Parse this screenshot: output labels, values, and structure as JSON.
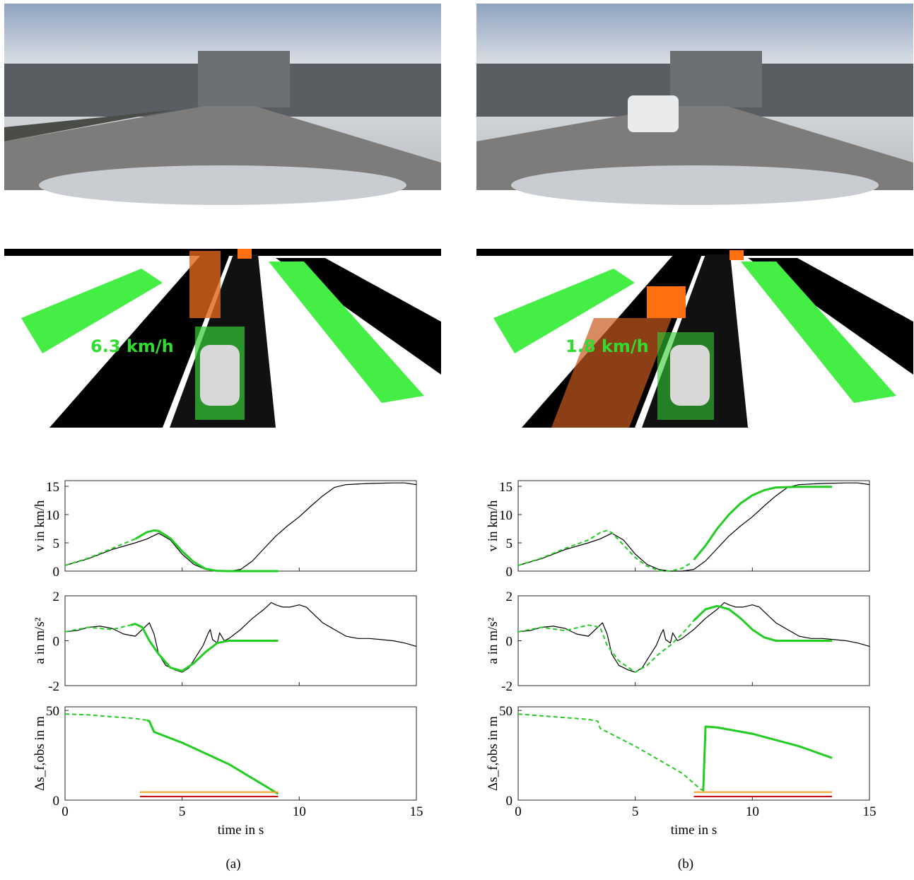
{
  "chart_data": [
    {
      "type": "line",
      "ylabel": "v in km/h",
      "xlim": [
        0,
        15
      ],
      "xticks": [
        0,
        5,
        10,
        15
      ],
      "show_xtick_labels": false,
      "ylim": [
        0,
        16
      ],
      "yticks": [
        0,
        5,
        10,
        15
      ],
      "series": [
        {
          "color": "#000000",
          "style": "solid",
          "width": 1.2,
          "x": [
            0,
            1,
            2,
            3,
            3.5,
            4,
            4.5,
            5,
            5.5,
            6,
            6.5,
            7,
            7.5,
            8,
            8.5,
            9,
            9.5,
            10,
            10.5,
            11,
            11.5,
            12,
            13,
            14,
            14.5,
            15
          ],
          "values": [
            1,
            2.2,
            3.8,
            5,
            5.7,
            6.7,
            5.5,
            3,
            1.2,
            0.3,
            0,
            0,
            0.3,
            1.8,
            4,
            6.2,
            8,
            9.6,
            11.5,
            13.3,
            14.8,
            15.3,
            15.5,
            15.6,
            15.6,
            15.3
          ]
        },
        {
          "color": "#22cc22",
          "style": "dashed",
          "width": 2,
          "x": [
            0,
            1,
            2,
            3
          ],
          "values": [
            1,
            2.3,
            4,
            5.7
          ]
        },
        {
          "color": "#22cc22",
          "style": "solid",
          "width": 3,
          "x": [
            3,
            3.5,
            3.8,
            4,
            4.5,
            5,
            5.5,
            6,
            6.5,
            7,
            8,
            9.1
          ],
          "values": [
            5.7,
            6.9,
            7.2,
            7.1,
            5.8,
            3.5,
            1.6,
            0.4,
            0.05,
            0,
            0,
            0
          ]
        }
      ]
    },
    {
      "type": "line",
      "ylabel": "a in m/s²",
      "xlim": [
        0,
        15
      ],
      "xticks": [
        0,
        5,
        10,
        15
      ],
      "show_xtick_labels": false,
      "ylim": [
        -2,
        2
      ],
      "yticks": [
        -2,
        0,
        2
      ],
      "series": [
        {
          "color": "#000000",
          "style": "solid",
          "width": 1.2,
          "x": [
            0,
            0.5,
            1,
            1.5,
            2,
            2.5,
            3,
            3.3,
            3.6,
            3.8,
            4,
            4.3,
            4.7,
            5,
            5.3,
            5.6,
            5.9,
            6.1,
            6.2,
            6.3,
            6.5,
            6.6,
            6.8,
            7,
            7.5,
            8,
            8.5,
            8.8,
            9,
            9.3,
            9.6,
            10,
            10.3,
            10.6,
            11,
            11.5,
            12,
            12.5,
            13,
            13.5,
            14,
            14.5,
            15
          ],
          "values": [
            0.4,
            0.45,
            0.6,
            0.65,
            0.55,
            0.3,
            0.2,
            0.5,
            0.8,
            0.3,
            -0.6,
            -1.1,
            -1.3,
            -1.4,
            -1.2,
            -0.7,
            -0.2,
            0.3,
            0.5,
            0.05,
            -0.1,
            0.35,
            0,
            0.1,
            0.5,
            1,
            1.4,
            1.7,
            1.6,
            1.5,
            1.5,
            1.6,
            1.5,
            1.2,
            0.8,
            0.5,
            0.2,
            0.1,
            0.1,
            0.05,
            0,
            -0.1,
            -0.25
          ]
        },
        {
          "color": "#22cc22",
          "style": "dashed",
          "width": 2,
          "x": [
            0,
            1,
            2,
            2.8
          ],
          "values": [
            0.4,
            0.6,
            0.5,
            0.7
          ]
        },
        {
          "color": "#22cc22",
          "style": "solid",
          "width": 3,
          "x": [
            2.8,
            3,
            3.3,
            3.6,
            4,
            4.5,
            5,
            5.5,
            6,
            6.5,
            7,
            9.1
          ],
          "values": [
            0.7,
            0.75,
            0.6,
            0,
            -0.6,
            -1.2,
            -1.35,
            -1,
            -0.5,
            -0.1,
            0,
            0
          ]
        }
      ]
    },
    {
      "type": "line",
      "ylabel": "Δs_f,obs in m",
      "xlabel": "time in s",
      "xlim": [
        0,
        15
      ],
      "xticks": [
        0,
        5,
        10,
        15
      ],
      "ylim": [
        0,
        52
      ],
      "yticks": [
        0,
        50
      ],
      "series": [
        {
          "color": "#22cc22",
          "style": "dashed",
          "width": 2,
          "x": [
            0,
            1,
            2,
            3,
            3.5
          ],
          "values": [
            48,
            47.5,
            46.5,
            45.5,
            44.5
          ]
        },
        {
          "color": "#22cc22",
          "style": "solid",
          "width": 3,
          "x": [
            3.5,
            3.6,
            3.8,
            5,
            7,
            9.1
          ],
          "values": [
            44.5,
            44,
            38,
            32,
            20,
            3.5
          ]
        },
        {
          "color": "#f0a020",
          "style": "solid",
          "width": 2,
          "x": [
            3.2,
            9.1
          ],
          "values": [
            4.5,
            4.5
          ]
        },
        {
          "color": "#c00000",
          "style": "solid",
          "width": 2,
          "x": [
            3.2,
            9.1
          ],
          "values": [
            2,
            2
          ]
        }
      ]
    },
    {
      "type": "line",
      "ylabel": "v in km/h",
      "xlim": [
        0,
        15
      ],
      "xticks": [
        0,
        5,
        10,
        15
      ],
      "show_xtick_labels": false,
      "ylim": [
        0,
        16
      ],
      "yticks": [
        0,
        5,
        10,
        15
      ],
      "series": [
        {
          "color": "#000000",
          "style": "solid",
          "width": 1.2,
          "x": [
            0,
            1,
            2,
            3,
            3.5,
            4,
            4.5,
            5,
            5.5,
            6,
            6.5,
            7,
            7.5,
            8,
            8.5,
            9,
            9.5,
            10,
            10.5,
            11,
            11.5,
            12,
            13,
            14,
            14.5,
            15
          ],
          "values": [
            1,
            2.2,
            3.8,
            5,
            5.7,
            6.7,
            5.5,
            3,
            1.2,
            0.3,
            0,
            0,
            0.3,
            1.8,
            4,
            6.2,
            8,
            9.6,
            11.5,
            13.3,
            14.8,
            15.3,
            15.5,
            15.6,
            15.6,
            15.3
          ]
        },
        {
          "color": "#22cc22",
          "style": "dashed",
          "width": 2,
          "x": [
            0,
            1,
            2,
            3,
            3.5,
            3.8,
            4,
            4.5,
            5,
            5.5,
            6,
            6.5,
            7,
            7.4
          ],
          "values": [
            1,
            2.3,
            4,
            5.5,
            6.8,
            7.2,
            6.8,
            4.6,
            2.4,
            0.9,
            0.1,
            0,
            0.5,
            1.5
          ]
        },
        {
          "color": "#22cc22",
          "style": "solid",
          "width": 3,
          "x": [
            7.5,
            8,
            8.5,
            9,
            9.5,
            10,
            10.5,
            11,
            12,
            13.4
          ],
          "values": [
            2,
            4.5,
            7.5,
            10,
            12,
            13.4,
            14.3,
            14.8,
            14.9,
            14.9
          ]
        }
      ]
    },
    {
      "type": "line",
      "ylabel": "a in m/s²",
      "xlim": [
        0,
        15
      ],
      "xticks": [
        0,
        5,
        10,
        15
      ],
      "show_xtick_labels": false,
      "ylim": [
        -2,
        2
      ],
      "yticks": [
        -2,
        0,
        2
      ],
      "series": [
        {
          "color": "#000000",
          "style": "solid",
          "width": 1.2,
          "x": [
            0,
            0.5,
            1,
            1.5,
            2,
            2.5,
            3,
            3.3,
            3.6,
            3.8,
            4,
            4.3,
            4.7,
            5,
            5.3,
            5.6,
            5.9,
            6.1,
            6.2,
            6.3,
            6.5,
            6.6,
            6.8,
            7,
            7.5,
            8,
            8.5,
            8.8,
            9,
            9.3,
            9.6,
            10,
            10.3,
            10.6,
            11,
            11.5,
            12,
            12.5,
            13,
            13.5,
            14,
            14.5,
            15
          ],
          "values": [
            0.4,
            0.45,
            0.6,
            0.65,
            0.55,
            0.3,
            0.2,
            0.5,
            0.8,
            0.3,
            -0.6,
            -1.1,
            -1.3,
            -1.4,
            -1.2,
            -0.7,
            -0.2,
            0.3,
            0.5,
            0.05,
            -0.1,
            0.35,
            0,
            0.1,
            0.5,
            1,
            1.4,
            1.7,
            1.6,
            1.5,
            1.5,
            1.6,
            1.5,
            1.2,
            0.8,
            0.5,
            0.2,
            0.1,
            0.1,
            0.05,
            0,
            -0.1,
            -0.25
          ]
        },
        {
          "color": "#22cc22",
          "style": "dashed",
          "width": 2,
          "x": [
            0,
            1,
            2,
            3,
            3.5,
            3.8,
            4.3,
            5,
            5.5,
            6,
            6.5,
            7,
            7.5
          ],
          "values": [
            0.4,
            0.6,
            0.45,
            0.7,
            0.6,
            -0.2,
            -0.9,
            -1.4,
            -1.1,
            -0.6,
            -0.2,
            0.3,
            0.9
          ]
        },
        {
          "color": "#22cc22",
          "style": "solid",
          "width": 3,
          "x": [
            7.5,
            8,
            8.5,
            9,
            9.5,
            10,
            10.5,
            11,
            13.4
          ],
          "values": [
            0.9,
            1.4,
            1.55,
            1.4,
            1,
            0.5,
            0.15,
            0,
            0
          ]
        }
      ]
    },
    {
      "type": "line",
      "ylabel": "Δs_f,obs in m",
      "xlabel": "time in s",
      "xlim": [
        0,
        15
      ],
      "xticks": [
        0,
        5,
        10,
        15
      ],
      "ylim": [
        0,
        52
      ],
      "yticks": [
        0,
        50
      ],
      "series": [
        {
          "color": "#22cc22",
          "style": "dashed",
          "width": 2,
          "x": [
            0,
            3,
            3.4,
            3.5,
            5,
            7,
            7.8,
            7.9
          ],
          "values": [
            48,
            45,
            44,
            40,
            30,
            15,
            6,
            5.5
          ]
        },
        {
          "color": "#22cc22",
          "style": "solid",
          "width": 3,
          "x": [
            7.9,
            8,
            8.5,
            10,
            12,
            13.4
          ],
          "values": [
            5,
            41,
            40.5,
            37,
            30,
            23.5
          ]
        },
        {
          "color": "#f0a020",
          "style": "solid",
          "width": 2,
          "x": [
            7.5,
            13.4
          ],
          "values": [
            4.5,
            4.5
          ]
        },
        {
          "color": "#c00000",
          "style": "solid",
          "width": 2,
          "x": [
            7.5,
            13.4
          ],
          "values": [
            2,
            2
          ]
        }
      ]
    }
  ],
  "panels": [
    {
      "label": "(a)",
      "speed_text": "6.3 km/h"
    },
    {
      "label": "(b)",
      "speed_text": "1.8 km/h"
    }
  ]
}
